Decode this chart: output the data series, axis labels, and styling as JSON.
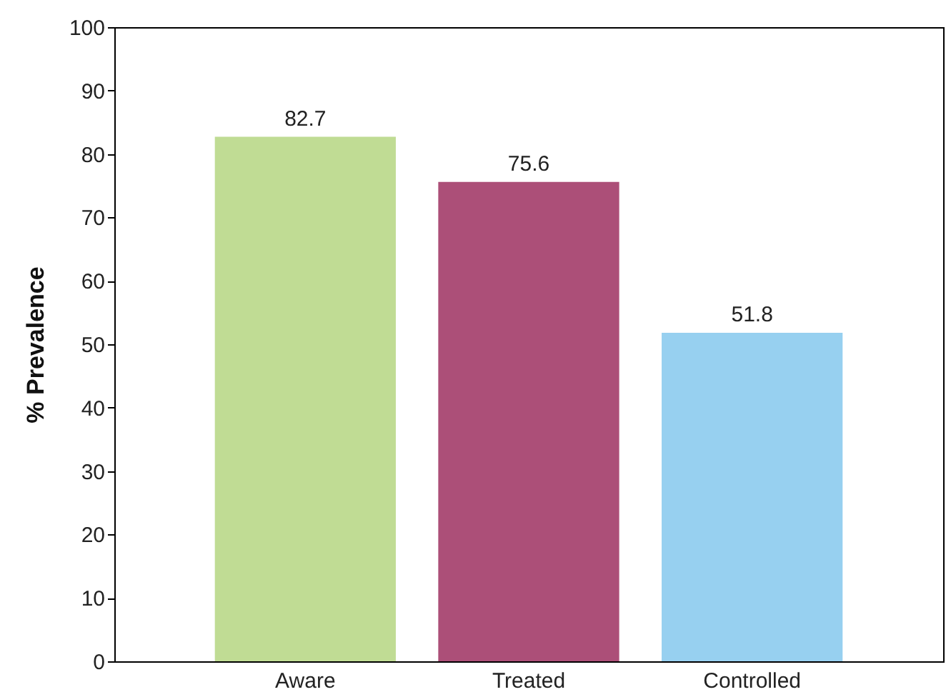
{
  "chart_data": {
    "type": "bar",
    "ylabel": "% Prevalence",
    "categories": [
      "Aware",
      "Treated",
      "Controlled"
    ],
    "values": [
      82.7,
      75.6,
      51.8
    ],
    "colors": [
      "#c0dc94",
      "#ac4f78",
      "#97d0f0"
    ],
    "ylim": [
      0,
      100
    ],
    "yticks": [
      0,
      10,
      20,
      30,
      40,
      50,
      60,
      70,
      80,
      90,
      100
    ],
    "data_labels": true,
    "grid": false
  }
}
